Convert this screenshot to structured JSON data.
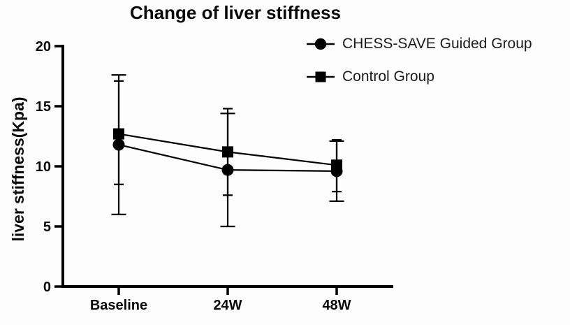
{
  "title": "Change of liver stiffness",
  "chart_data": {
    "type": "line",
    "title": "Change of liver stiffness",
    "xlabel": "",
    "ylabel": "liver stiffness(Kpa)",
    "categories": [
      "Baseline",
      "24W",
      "48W"
    ],
    "ylim": [
      0,
      20
    ],
    "yticks": [
      0,
      5,
      10,
      15,
      20
    ],
    "grid": false,
    "legend_position": "top-right",
    "marker_color": "#000000",
    "series": [
      {
        "name": "CHESS-SAVE Guided Group",
        "marker": "circle",
        "color": "#000000",
        "values": [
          11.8,
          9.7,
          9.6
        ],
        "error_high": [
          17.6,
          14.4,
          12.1
        ],
        "error_low": [
          6.0,
          5.0,
          7.1
        ]
      },
      {
        "name": "Control Group",
        "marker": "square",
        "color": "#000000",
        "values": [
          12.7,
          11.2,
          10.1
        ],
        "error_high": [
          17.1,
          14.8,
          12.2
        ],
        "error_low": [
          8.5,
          7.6,
          7.9
        ]
      }
    ]
  }
}
